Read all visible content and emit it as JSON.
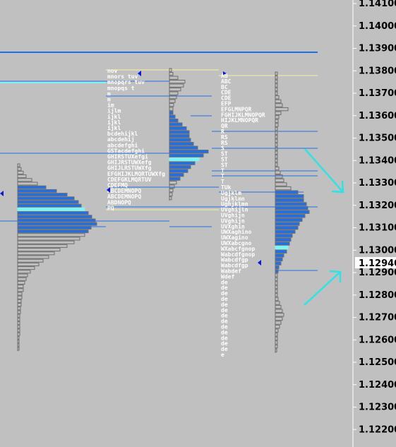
{
  "price_axis": {
    "ticks": [
      "1.14100",
      "1.14000",
      "1.13900",
      "1.13800",
      "1.13700",
      "1.13600",
      "1.13500",
      "1.13400",
      "1.13300",
      "1.13200",
      "1.13100",
      "1.13000",
      "1.12900",
      "1.12800",
      "1.12700",
      "1.12600",
      "1.12500",
      "1.12400",
      "1.12300",
      "1.12200"
    ],
    "current_price": "1.12940"
  },
  "colors": {
    "background": "#c0c0c0",
    "level_line": "#1e6fe8",
    "value_area_bar": "#1e6fe8",
    "poc_bar": "#7df4f6",
    "bar_outline": "#6e6e6e",
    "letter_text": "#ffffff",
    "arrow": "#2ee3e3",
    "yellow_line": "#f3f39c",
    "triangle": "#0a19d8"
  },
  "profile2": {
    "letters": [
      "nov",
      "mnors tuv",
      "mnopqrs tuv",
      "mnopqs t",
      "m",
      "m",
      "im",
      "ijlm",
      "ijkl",
      "ijkl",
      "ijkl",
      "bcdehijkl",
      "abcdehij",
      "abcdefghi",
      "GSTacdefghi",
      "GHIRSTUXefgi",
      "GHIJRSTUWXefg",
      "GHIJLRSTUWXfg",
      "EFGHIJKLMQRTUWXfg",
      "CDEFGKLMQRTUV",
      "CDEFMQ",
      "ABCDEMNOPQ",
      "ABCDEMNOPQ",
      "ABDNOPQ",
      "PQ"
    ]
  },
  "profile3": {
    "letters": [
      "AB",
      "ABC",
      "BC",
      "CDE",
      "CDE",
      "EFP",
      "EFGLMNPQR",
      "FGHIJKLMNOPQR",
      "HIJKLMNOPQR",
      "QR",
      "R",
      "RS",
      "RS",
      "S",
      "ST",
      "ST",
      "ST",
      "T",
      "T",
      "T",
      "TUk",
      "Ugjklm",
      "Ugjklmn",
      "Ughjklmn",
      "UVghijln",
      "UVghijn",
      "UVghijn",
      "UVXghin",
      "UWXaghino",
      "UWXagino",
      "UWXabcgno",
      "WXabcfgnop",
      "Wabcdfgnop",
      "Wabcdfgp",
      "Wabcdfgp",
      "Wabdef",
      "Wdef",
      "de",
      "de",
      "de",
      "de",
      "de",
      "de",
      "de",
      "de",
      "de",
      "de",
      "de",
      "de",
      "de",
      "e"
    ]
  }
}
